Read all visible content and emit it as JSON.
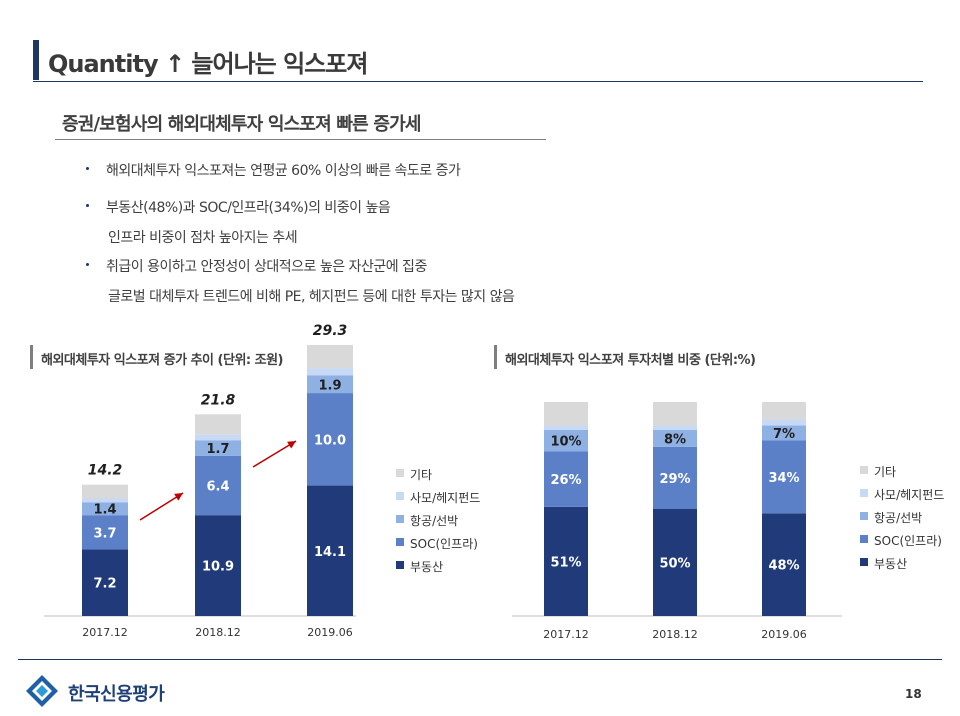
{
  "header": {
    "title": "Quantity ↑  늘어나는 익스포져",
    "subtitle": "증권/보험사의 해외대체투자 익스포져 빠른 증가세"
  },
  "bullets": [
    {
      "text": "해외대체투자 익스포져는 연평균 60% 이상의 빠른 속도로 증가",
      "dot": true
    },
    {
      "text": "부동산(48%)과 SOC/인프라(34%)의 비중이 높음",
      "dot": true
    },
    {
      "text": "인프라 비중이 점차 높아지는 추세",
      "dot": false
    },
    {
      "text": "취급이 용이하고 안정성이 상대적으로 높은 자산군에 집중",
      "dot": true
    },
    {
      "text": "글로벌 대체투자 트렌드에 비해 PE, 헤지펀드 등에 대한 투자는 많지 않음",
      "dot": false
    }
  ],
  "colors": {
    "navy": "#1f3764",
    "real_estate": "#203a7a",
    "soc": "#5b80c8",
    "aviation": "#8fb0e3",
    "hedge": "#c7d9f4",
    "other": "#d9d9d9",
    "arrow": "#c00000"
  },
  "legend": [
    "기타",
    "사모/헤지펀드",
    "항공/선박",
    "SOC(인프라)",
    "부동산"
  ],
  "chart_data": [
    {
      "type": "bar",
      "stacked": true,
      "title": "해외대체투자 익스포져  증가 추이  (단위: 조원)",
      "categories": [
        "2017.12",
        "2018.12",
        "2019.06"
      ],
      "totals": [
        "14.2",
        "21.8",
        "29.3"
      ],
      "series": [
        {
          "name": "부동산",
          "values": [
            7.2,
            10.9,
            14.1
          ],
          "labels": [
            "7.2",
            "10.9",
            "14.1"
          ]
        },
        {
          "name": "SOC(인프라)",
          "values": [
            3.7,
            6.4,
            10.0
          ],
          "labels": [
            "3.7",
            "6.4",
            "10.0"
          ]
        },
        {
          "name": "항공/선박",
          "values": [
            1.4,
            1.7,
            1.9
          ],
          "labels": [
            "1.4",
            "1.7",
            "1.9"
          ]
        },
        {
          "name": "사모/헤지펀드",
          "values": [
            0.4,
            0.6,
            0.8
          ],
          "labels": [
            "",
            "",
            ""
          ]
        },
        {
          "name": "기타",
          "values": [
            1.5,
            2.2,
            2.5
          ],
          "labels": [
            "",
            "",
            ""
          ]
        }
      ],
      "ylim": [
        0,
        32
      ],
      "legend_position": "right"
    },
    {
      "type": "bar",
      "stacked": true,
      "title": "해외대체투자 익스포져  투자처별 비중  (단위:%)",
      "categories": [
        "2017.12",
        "2018.12",
        "2019.06"
      ],
      "series": [
        {
          "name": "부동산",
          "values": [
            51,
            50,
            48
          ],
          "labels": [
            "51%",
            "50%",
            "48%"
          ]
        },
        {
          "name": "SOC(인프라)",
          "values": [
            26,
            29,
            34
          ],
          "labels": [
            "26%",
            "29%",
            "34%"
          ]
        },
        {
          "name": "항공/선박",
          "values": [
            10,
            8,
            7
          ],
          "labels": [
            "10%",
            "8%",
            "7%"
          ]
        },
        {
          "name": "사모/헤지펀드",
          "values": [
            2,
            2,
            3
          ],
          "labels": [
            "",
            "",
            ""
          ]
        },
        {
          "name": "기타",
          "values": [
            11,
            11,
            8
          ],
          "labels": [
            "",
            "",
            ""
          ]
        }
      ],
      "ylim": [
        0,
        100
      ],
      "legend_position": "right"
    }
  ],
  "footer": {
    "company": "한국신용평가",
    "page": "18"
  }
}
